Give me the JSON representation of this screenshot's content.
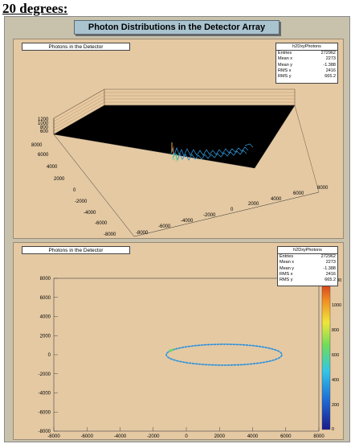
{
  "page_heading": "20 degrees:",
  "canvas": {
    "title": "Photon Distributions in the Detector Array"
  },
  "pad_top": {
    "title": "Photons in the Detector",
    "stats": {
      "name": "h2DxyPhotons",
      "rows": [
        {
          "label": "Entries",
          "value": "272962"
        },
        {
          "label": "Mean x",
          "value": "2273"
        },
        {
          "label": "Mean y",
          "value": "-1.388"
        },
        {
          "label": "RMS x",
          "value": "2416"
        },
        {
          "label": "RMS y",
          "value": "665.2"
        }
      ]
    },
    "x_ticks": [
      "-8000",
      "-6000",
      "-4000",
      "-2000",
      "0",
      "2000",
      "4000",
      "6000",
      "8000"
    ],
    "y_ticks": [
      "8000",
      "6000",
      "4000",
      "2000",
      "0",
      "-2000",
      "-4000",
      "-6000",
      "-8000"
    ],
    "z_ticks": [
      "1200",
      "1000",
      "800",
      "600",
      "400",
      "200"
    ]
  },
  "pad_bottom": {
    "title": "Photons in the Detector",
    "stats": {
      "name": "h2DxyPhotons",
      "rows": [
        {
          "label": "Entries",
          "value": "272962"
        },
        {
          "label": "Mean x",
          "value": "2273"
        },
        {
          "label": "Mean y",
          "value": "-1.388"
        },
        {
          "label": "RMS x",
          "value": "2416"
        },
        {
          "label": "RMS y",
          "value": "665.2"
        }
      ]
    },
    "x_ticks": [
      "-8000",
      "-6000",
      "-4000",
      "-2000",
      "0",
      "2000",
      "4000",
      "6000",
      "8000"
    ],
    "y_ticks": [
      "8000",
      "6000",
      "4000",
      "2000",
      "0",
      "-2000",
      "-4000",
      "-6000",
      "-8000"
    ],
    "palette_ticks": [
      "1200",
      "1000",
      "800",
      "600",
      "400",
      "200",
      "0"
    ]
  },
  "colors": {
    "canvas_bg": "#c8c2ad",
    "pad_bg": "#e4c9a3",
    "banner_bg": "#a9c3cf",
    "lego_floor": "#000000",
    "ring": "#3aa6e0"
  }
}
